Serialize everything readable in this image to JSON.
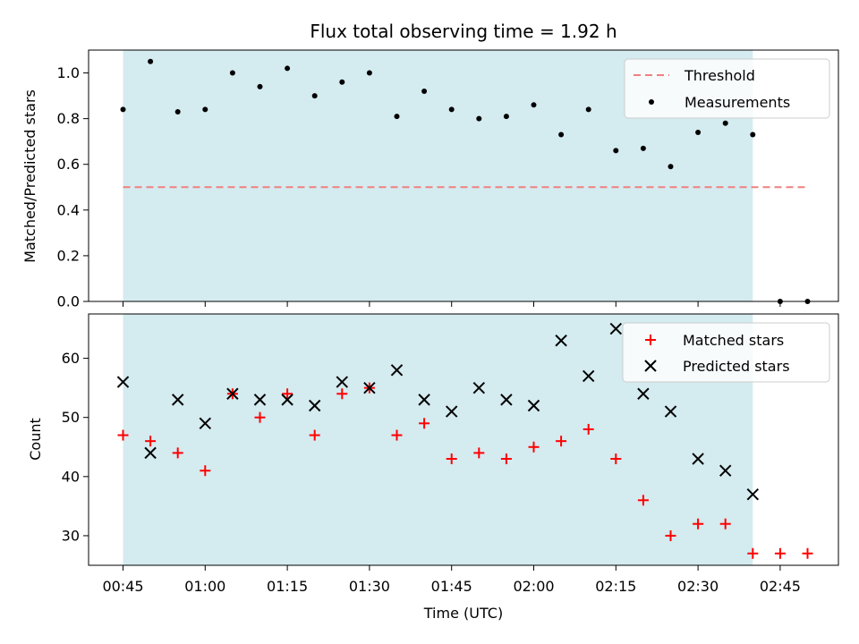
{
  "chart_data": {
    "title": "Flux total observing time = 1.92 h",
    "x_categories": [
      "00:45",
      "00:50",
      "00:55",
      "01:00",
      "01:05",
      "01:10",
      "01:15",
      "01:20",
      "01:25",
      "01:30",
      "01:35",
      "01:40",
      "01:45",
      "01:50",
      "01:55",
      "02:00",
      "02:05",
      "02:10",
      "02:15",
      "02:20",
      "02:25",
      "02:30",
      "02:35",
      "02:40",
      "02:45",
      "02:50"
    ],
    "xlabel": "Time (UTC)",
    "x_ticks": [
      "00:45",
      "01:00",
      "01:15",
      "01:30",
      "01:45",
      "02:00",
      "02:15",
      "02:30",
      "02:45"
    ],
    "shaded_span": [
      "00:45",
      "02:40"
    ],
    "shade_color": "#d4ebf0",
    "subplots": [
      {
        "type": "scatter",
        "ylabel": "Matched/Predicted stars",
        "ylim": [
          0,
          1.1
        ],
        "y_ticks": [
          "0.0",
          "0.2",
          "0.4",
          "0.6",
          "0.8",
          "1.0"
        ],
        "legend_position": "top-right",
        "series": [
          {
            "name": "Threshold",
            "kind": "dashed-line",
            "color": "#f08080",
            "y": 0.5,
            "x_range": [
              "00:45",
              "02:50"
            ]
          },
          {
            "name": "Measurements",
            "kind": "dot",
            "color": "#000000",
            "values": [
              0.84,
              1.05,
              0.83,
              0.84,
              1.0,
              0.94,
              1.02,
              0.9,
              0.96,
              1.0,
              0.81,
              0.92,
              0.84,
              0.8,
              0.81,
              0.86,
              0.73,
              0.84,
              0.66,
              0.67,
              0.59,
              0.74,
              0.78,
              0.73,
              0.0,
              0.0
            ]
          }
        ]
      },
      {
        "type": "scatter",
        "ylabel": "Count",
        "ylim": [
          25,
          67.5
        ],
        "y_ticks": [
          "30",
          "40",
          "50",
          "60"
        ],
        "legend_position": "top-right",
        "series": [
          {
            "name": "Matched stars",
            "kind": "plus",
            "color": "#ff0000",
            "values": [
              47,
              46,
              44,
              41,
              54,
              50,
              54,
              47,
              54,
              55,
              47,
              49,
              43,
              44,
              43,
              45,
              46,
              48,
              43,
              36,
              30,
              32,
              32,
              27,
              27,
              27
            ]
          },
          {
            "name": "Predicted stars",
            "kind": "x",
            "color": "#000000",
            "values": [
              56,
              44,
              53,
              49,
              54,
              53,
              53,
              52,
              56,
              55,
              58,
              53,
              51,
              55,
              53,
              52,
              63,
              57,
              65,
              54,
              51,
              43,
              41,
              37,
              null,
              null
            ]
          }
        ]
      }
    ]
  }
}
